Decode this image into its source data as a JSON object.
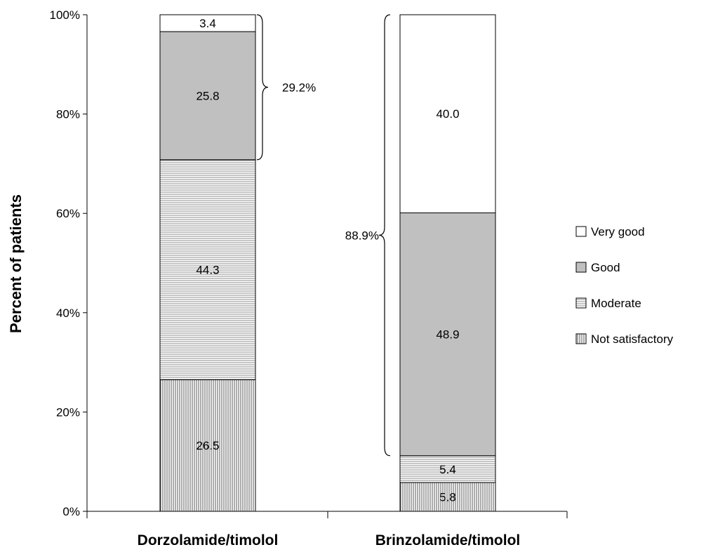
{
  "chart_data": {
    "type": "bar",
    "stacked": true,
    "title": "",
    "ylabel": "Percent of patients",
    "xlabel": "",
    "ylim": [
      0,
      100
    ],
    "yticks": [
      {
        "value": 0,
        "label": "0%"
      },
      {
        "value": 20,
        "label": "20%"
      },
      {
        "value": 40,
        "label": "40%"
      },
      {
        "value": 60,
        "label": "60%"
      },
      {
        "value": 80,
        "label": "80%"
      },
      {
        "value": 100,
        "label": "100%"
      }
    ],
    "categories": [
      "Dorzolamide/timolol",
      "Brinzolamide/timolol"
    ],
    "series": [
      {
        "name": "Not satisfactory",
        "pattern": "vertical-lines",
        "values": [
          26.5,
          5.8
        ],
        "labels": [
          "26.5",
          "5.8"
        ]
      },
      {
        "name": "Moderate",
        "pattern": "horizontal-lines",
        "values": [
          44.3,
          5.4
        ],
        "labels": [
          "44.3",
          "5.4"
        ]
      },
      {
        "name": "Good",
        "color": "#c0c0c0",
        "values": [
          25.8,
          48.9
        ],
        "labels": [
          "25.8",
          "48.9"
        ]
      },
      {
        "name": "Very good",
        "color": "#ffffff",
        "values": [
          3.4,
          40.0
        ],
        "labels": [
          "3.4",
          "40.0"
        ]
      }
    ],
    "legend_order": [
      "Very good",
      "Good",
      "Moderate",
      "Not satisfactory"
    ],
    "legend_position": "right",
    "annotations": [
      {
        "category": 0,
        "from": 70.8,
        "to": 100,
        "label": "29.2%",
        "side": "right"
      },
      {
        "category": 1,
        "from": 11.2,
        "to": 100,
        "label": "88.9%",
        "side": "left"
      }
    ],
    "grid": false
  }
}
